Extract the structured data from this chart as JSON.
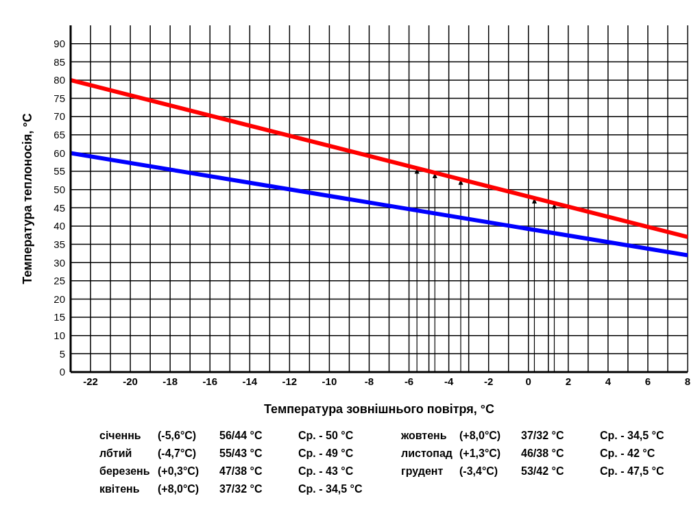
{
  "chart_data": {
    "type": "line",
    "xlabel": "Температура зовнішнього повітря, °C",
    "ylabel": "Температура теплоносія, °C",
    "xlim": [
      -23,
      8
    ],
    "ylim": [
      0,
      95
    ],
    "xticks": [
      -22,
      {
        "value": -21,
        "label": null
      },
      -20,
      {
        "value": -19,
        "label": null
      },
      -18,
      {
        "value": -17,
        "label": null
      },
      -16,
      {
        "value": -15,
        "label": null
      },
      -14,
      {
        "value": -13,
        "label": null
      },
      -12,
      {
        "value": -11,
        "label": null
      },
      -10,
      {
        "value": -9,
        "label": null
      },
      -8,
      {
        "value": -7,
        "label": null
      },
      -6,
      {
        "value": -5,
        "label": null
      },
      -4,
      {
        "value": -3,
        "label": null
      },
      -2,
      {
        "value": -1,
        "label": null
      },
      0,
      {
        "value": 1,
        "label": null
      },
      2,
      {
        "value": 3,
        "label": null
      },
      4,
      {
        "value": 5,
        "label": null
      },
      6,
      {
        "value": 7,
        "label": null
      },
      8
    ],
    "yticks": [
      0,
      5,
      10,
      15,
      20,
      25,
      30,
      35,
      40,
      45,
      50,
      55,
      60,
      65,
      70,
      75,
      80,
      85,
      90
    ],
    "grid": true,
    "marker": "none",
    "line_style": "solid",
    "x": [
      -23,
      8
    ],
    "ref_lines": [
      {
        "axis": "x",
        "value": -5.6
      },
      {
        "axis": "x",
        "value": -4.7
      },
      {
        "axis": "x",
        "value": -3.4
      },
      {
        "axis": "x",
        "value": 0.3
      },
      {
        "axis": "x",
        "value": 1.3
      }
    ],
    "series": [
      {
        "color": "#ff0000",
        "values": [
          80,
          37
        ]
      },
      {
        "color": "#0000ff",
        "values": [
          60,
          32
        ]
      }
    ],
    "annotations": [
      "січеннь",
      "(-5,6°C)",
      "56/44 °C",
      "Ср. - 50 °C",
      "лбтий",
      "(-4,7°C)",
      "55/43 °C",
      "Ср. - 49 °C",
      "березень",
      "(+0,3°C)",
      "47/38 °C",
      "Ср. - 43 °C",
      "квітень",
      "(+8,0°C)",
      "37/32 °C",
      "Ср. - 34,5 °C",
      "жовтень",
      "(+8,0°C)",
      "37/32 °C",
      "Ср. - 34,5 °C",
      "листопад",
      "(+1,3°C)",
      "46/38 °C",
      "Ср. - 42 °C",
      "грудент",
      "(-3,4°C)",
      "53/42 °C",
      "Ср. - 47,5 °C"
    ]
  }
}
